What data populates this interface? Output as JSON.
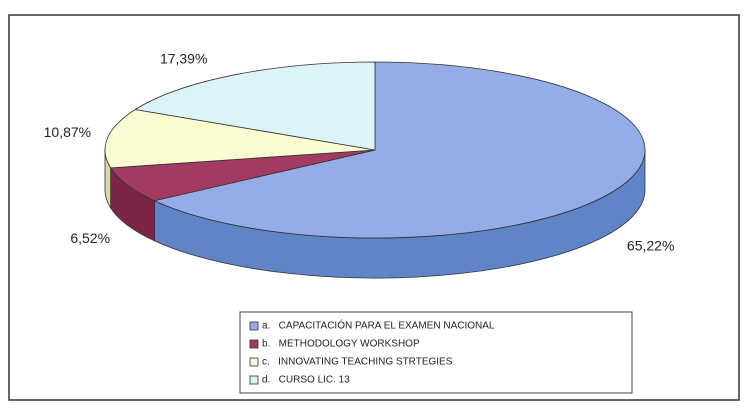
{
  "chart_data": {
    "type": "pie3d",
    "categories": [
      "a.   CAPACITACIÓN PARA EL EXAMEN NACIONAL",
      "b.   METHODOLOGY WORKSHOP",
      "c.   INNOVATING TEACHING STRTEGIES",
      "d.   CURSO LIC. 13"
    ],
    "values": [
      65.22,
      6.52,
      10.87,
      17.39
    ],
    "value_labels": [
      "65,22%",
      "6,52%",
      "10,87%",
      "17,39%"
    ],
    "colors": [
      "#95acE6",
      "#a33a63",
      "#fbfbd2",
      "#dcf3fa"
    ],
    "side_colors": [
      "#5f84c8",
      "#7d2546",
      "#d8d8a8",
      "#b4d4dc"
    ],
    "legend": "bottom"
  }
}
